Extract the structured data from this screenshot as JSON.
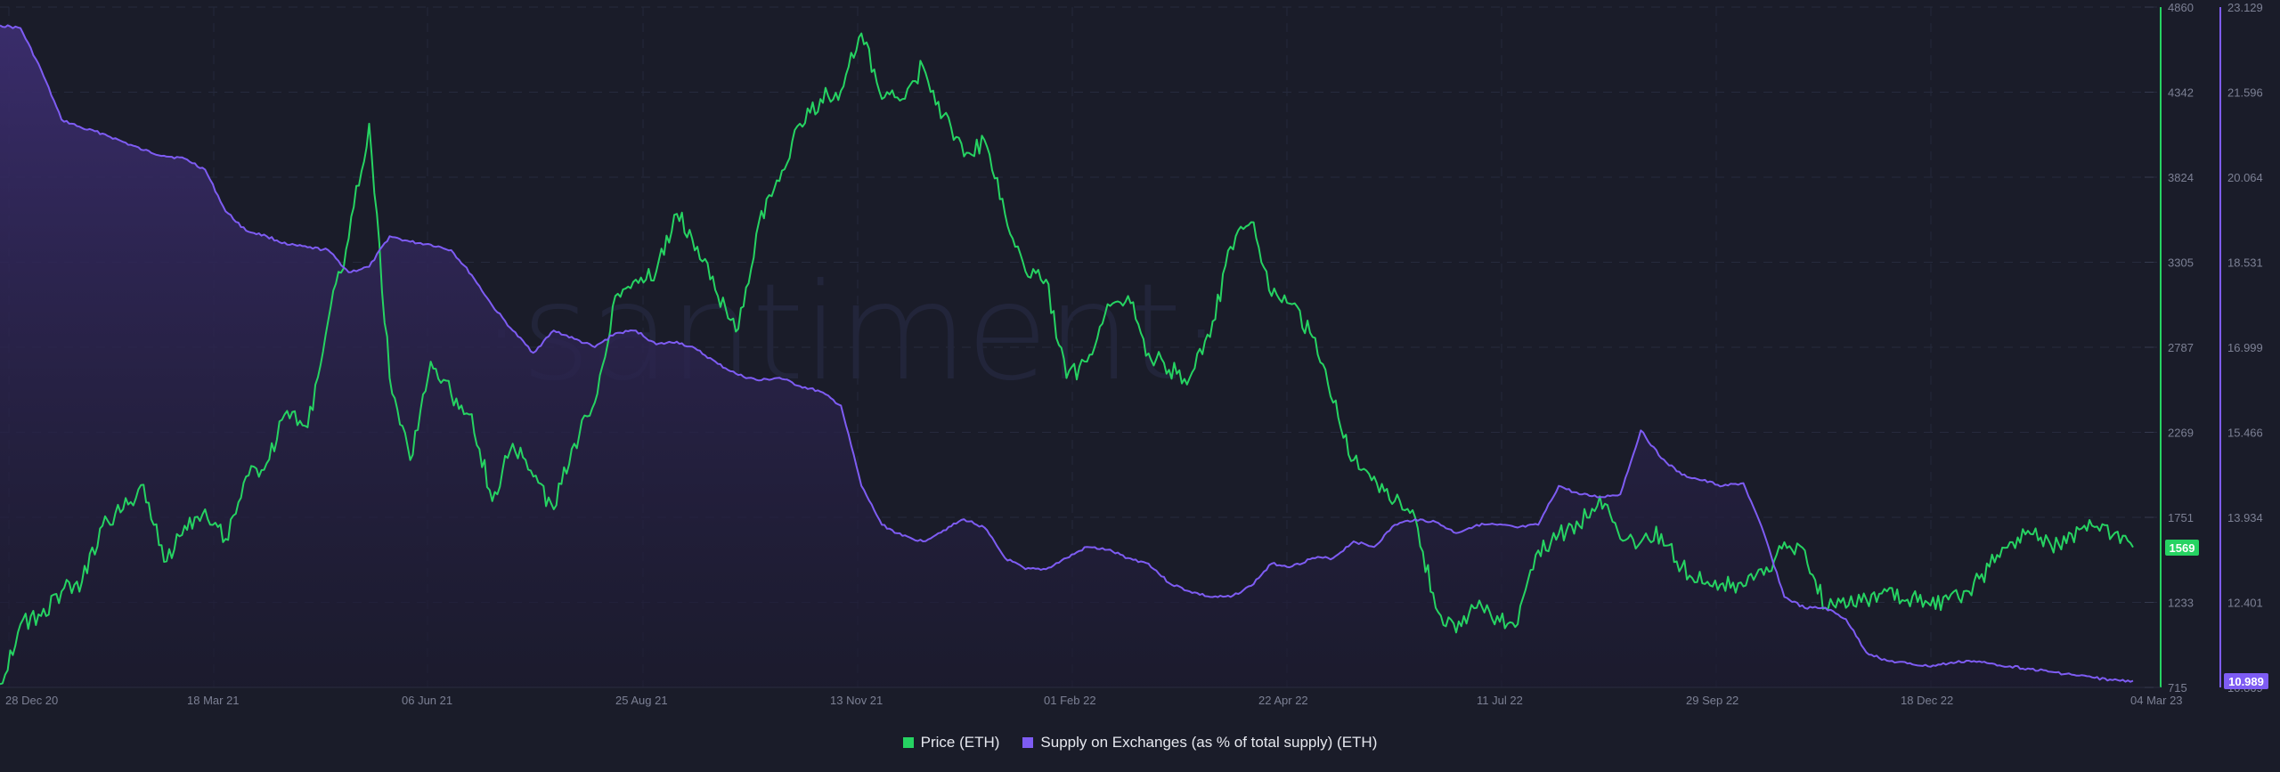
{
  "chart_data": {
    "type": "line",
    "title": "",
    "watermark": "·santiment·",
    "xlabel": "",
    "ylabel": "Price (ETH)",
    "y2label": "Supply on Exchanges (as % of total supply) (ETH)",
    "x_range": [
      "28 Dec 20",
      "04 Mar 23"
    ],
    "x_ticks": [
      "28 Dec 20",
      "18 Mar 21",
      "06 Jun 21",
      "25 Aug 21",
      "13 Nov 21",
      "01 Feb 22",
      "22 Apr 22",
      "11 Jul 22",
      "29 Sep 22",
      "18 Dec 22",
      "04 Mar 23"
    ],
    "y_ticks": [
      "4860",
      "4342",
      "3824",
      "3305",
      "2787",
      "2269",
      "1751",
      "1233",
      "715"
    ],
    "y2_ticks": [
      "23.129",
      "21.596",
      "20.064",
      "18.531",
      "16.999",
      "15.466",
      "13.934",
      "12.401",
      "10.869"
    ],
    "ylim": [
      715,
      4860
    ],
    "y2lim": [
      10.869,
      23.129
    ],
    "grid": true,
    "legend_position": "bottom-center",
    "current_values": {
      "price": "1569",
      "supply": "10.989"
    },
    "series": [
      {
        "name": "Price (ETH)",
        "axis": "left",
        "color": "#26d362",
        "dates": [
          "28 Dec 20",
          "05 Jan 21",
          "12 Jan 21",
          "20 Jan 21",
          "28 Jan 21",
          "05 Feb 21",
          "12 Feb 21",
          "20 Feb 21",
          "28 Feb 21",
          "08 Mar 21",
          "15 Mar 21",
          "23 Mar 21",
          "01 Apr 21",
          "08 Apr 21",
          "16 Apr 21",
          "24 Apr 21",
          "01 May 21",
          "06 May 21",
          "12 May 21",
          "19 May 21",
          "23 May 21",
          "30 May 21",
          "06 Jun 21",
          "14 Jun 21",
          "22 Jun 21",
          "01 Jul 21",
          "10 Jul 21",
          "20 Jul 21",
          "28 Jul 21",
          "05 Aug 21",
          "14 Aug 21",
          "22 Aug 21",
          "30 Aug 21",
          "07 Sep 21",
          "13 Sep 21",
          "21 Sep 21",
          "28 Sep 21",
          "06 Oct 21",
          "14 Oct 21",
          "21 Oct 21",
          "29 Oct 21",
          "05 Nov 21",
          "10 Nov 21",
          "18 Nov 21",
          "26 Nov 21",
          "01 Dec 21",
          "08 Dec 21",
          "15 Dec 21",
          "23 Dec 21",
          "01 Jan 22",
          "08 Jan 22",
          "16 Jan 22",
          "22 Jan 22",
          "31 Jan 22",
          "07 Feb 22",
          "15 Feb 22",
          "24 Feb 22",
          "04 Mar 22",
          "12 Mar 22",
          "20 Mar 22",
          "28 Mar 22",
          "03 Apr 22",
          "11 Apr 22",
          "20 Apr 22",
          "28 Apr 22",
          "06 May 22",
          "12 May 22",
          "20 May 22",
          "30 May 22",
          "08 Jun 22",
          "14 Jun 22",
          "18 Jun 22",
          "26 Jun 22",
          "04 Jul 22",
          "12 Jul 22",
          "20 Jul 22",
          "28 Jul 22",
          "06 Aug 22",
          "14 Aug 22",
          "22 Aug 22",
          "30 Aug 22",
          "08 Sep 22",
          "15 Sep 22",
          "22 Sep 22",
          "01 Oct 22",
          "10 Oct 22",
          "18 Oct 22",
          "28 Oct 22",
          "04 Nov 22",
          "09 Nov 22",
          "16 Nov 22",
          "24 Nov 22",
          "02 Dec 22",
          "10 Dec 22",
          "18 Dec 22",
          "26 Dec 22",
          "04 Jan 23",
          "12 Jan 23",
          "20 Jan 23",
          "28 Jan 23",
          "05 Feb 23",
          "13 Feb 23",
          "21 Feb 23",
          "28 Feb 23",
          "04 Mar 23"
        ],
        "values": [
          735,
          1100,
          1150,
          1300,
          1360,
          1700,
          1800,
          1950,
          1480,
          1700,
          1800,
          1620,
          2000,
          2080,
          2400,
          2300,
          2950,
          3450,
          4150,
          2600,
          2100,
          2700,
          2500,
          2380,
          1850,
          2200,
          2000,
          1800,
          2200,
          2450,
          3100,
          3200,
          3250,
          3600,
          3400,
          3100,
          2900,
          3550,
          3800,
          4150,
          4300,
          4350,
          4700,
          4300,
          4300,
          4500,
          4200,
          3950,
          4050,
          3600,
          3250,
          3200,
          2600,
          2700,
          3050,
          3100,
          2750,
          2650,
          2600,
          2850,
          3400,
          3550,
          3100,
          3050,
          2850,
          2450,
          2100,
          2000,
          1850,
          1750,
          1200,
          1050,
          1200,
          1150,
          1100,
          1550,
          1650,
          1700,
          1880,
          1620,
          1600,
          1650,
          1450,
          1350,
          1350,
          1330,
          1400,
          1600,
          1550,
          1200,
          1200,
          1250,
          1300,
          1250,
          1230,
          1250,
          1300,
          1450,
          1600,
          1650,
          1580,
          1650,
          1700,
          1640,
          1569
        ]
      },
      {
        "name": "Supply on Exchanges (as % of total supply) (ETH)",
        "axis": "right",
        "color": "#7e5cf3",
        "dates": [
          "28 Dec 20",
          "05 Jan 21",
          "12 Jan 21",
          "20 Jan 21",
          "28 Jan 21",
          "05 Feb 21",
          "12 Feb 21",
          "20 Feb 21",
          "28 Feb 21",
          "08 Mar 21",
          "15 Mar 21",
          "23 Mar 21",
          "01 Apr 21",
          "08 Apr 21",
          "16 Apr 21",
          "24 Apr 21",
          "01 May 21",
          "06 May 21",
          "12 May 21",
          "19 May 21",
          "23 May 21",
          "30 May 21",
          "06 Jun 21",
          "14 Jun 21",
          "22 Jun 21",
          "01 Jul 21",
          "10 Jul 21",
          "20 Jul 21",
          "28 Jul 21",
          "05 Aug 21",
          "14 Aug 21",
          "22 Aug 21",
          "30 Aug 21",
          "07 Sep 21",
          "13 Sep 21",
          "21 Sep 21",
          "28 Sep 21",
          "06 Oct 21",
          "14 Oct 21",
          "21 Oct 21",
          "29 Oct 21",
          "05 Nov 21",
          "10 Nov 21",
          "18 Nov 21",
          "26 Nov 21",
          "01 Dec 21",
          "08 Dec 21",
          "15 Dec 21",
          "23 Dec 21",
          "01 Jan 22",
          "08 Jan 22",
          "16 Jan 22",
          "22 Jan 22",
          "31 Jan 22",
          "07 Feb 22",
          "15 Feb 22",
          "24 Feb 22",
          "04 Mar 22",
          "12 Mar 22",
          "20 Mar 22",
          "28 Mar 22",
          "03 Apr 22",
          "11 Apr 22",
          "20 Apr 22",
          "28 Apr 22",
          "06 May 22",
          "12 May 22",
          "20 May 22",
          "30 May 22",
          "08 Jun 22",
          "14 Jun 22",
          "18 Jun 22",
          "26 Jun 22",
          "04 Jul 22",
          "12 Jul 22",
          "20 Jul 22",
          "28 Jul 22",
          "06 Aug 22",
          "14 Aug 22",
          "22 Aug 22",
          "30 Aug 22",
          "08 Sep 22",
          "15 Sep 22",
          "22 Sep 22",
          "01 Oct 22",
          "10 Oct 22",
          "18 Oct 22",
          "28 Oct 22",
          "04 Nov 22",
          "09 Nov 22",
          "16 Nov 22",
          "24 Nov 22",
          "02 Dec 22",
          "10 Dec 22",
          "18 Dec 22",
          "26 Dec 22",
          "04 Jan 23",
          "12 Jan 23",
          "20 Jan 23",
          "28 Jan 23",
          "05 Feb 23",
          "13 Feb 23",
          "21 Feb 23",
          "28 Feb 23",
          "04 Mar 23"
        ],
        "values": [
          22.8,
          22.75,
          22.0,
          21.1,
          20.95,
          20.85,
          20.7,
          20.55,
          20.45,
          20.4,
          20.2,
          19.45,
          19.1,
          19.0,
          18.85,
          18.8,
          18.75,
          18.35,
          18.45,
          19.0,
          18.9,
          18.85,
          18.75,
          18.3,
          17.75,
          17.3,
          16.9,
          17.3,
          17.15,
          17.0,
          17.25,
          17.3,
          17.05,
          17.1,
          16.95,
          16.7,
          16.5,
          16.4,
          16.45,
          16.3,
          16.2,
          15.95,
          14.5,
          13.8,
          13.6,
          13.5,
          13.7,
          13.9,
          13.75,
          13.2,
          13.0,
          13.0,
          13.2,
          13.4,
          13.35,
          13.2,
          13.1,
          12.75,
          12.6,
          12.5,
          12.5,
          12.7,
          13.1,
          13.05,
          13.2,
          13.2,
          13.5,
          13.4,
          13.8,
          13.9,
          13.85,
          13.65,
          13.8,
          13.8,
          13.75,
          13.8,
          14.5,
          14.35,
          14.3,
          14.35,
          15.5,
          15.0,
          14.7,
          14.6,
          14.5,
          14.55,
          13.65,
          12.5,
          12.3,
          12.3,
          12.1,
          11.5,
          11.35,
          11.3,
          11.25,
          11.3,
          11.35,
          11.3,
          11.25,
          11.2,
          11.15,
          11.1,
          11.05,
          11.0,
          10.989
        ]
      }
    ]
  },
  "legend": {
    "items": [
      {
        "label": "Price (ETH)",
        "color": "#26d362"
      },
      {
        "label": "Supply on Exchanges (as % of total supply) (ETH)",
        "color": "#7e5cf3"
      }
    ]
  },
  "badges": {
    "price": {
      "text": "1569",
      "color": "#26d362"
    },
    "supply": {
      "text": "10.989",
      "color": "#7e5cf3"
    }
  }
}
